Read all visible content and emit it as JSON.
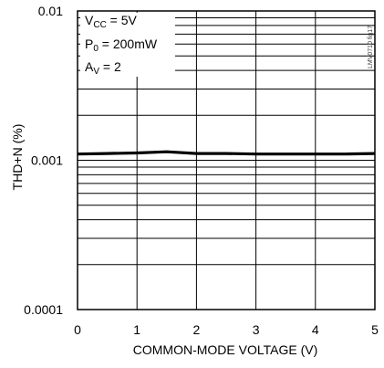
{
  "chart_data": {
    "type": "line",
    "xlabel": "COMMON-MODE VOLTAGE (V)",
    "ylabel": "THD+N (%)",
    "xlim": [
      0,
      5
    ],
    "ylim": [
      0.0001,
      0.01
    ],
    "yscale": "log",
    "grid": true,
    "x_ticks": [
      "0",
      "1",
      "2",
      "3",
      "4",
      "5"
    ],
    "y_ticks": [
      "0.0001",
      "0.001",
      "0.01"
    ],
    "legend_lines": [
      {
        "main": "V",
        "sub": "CC",
        "rest": " = 5V"
      },
      {
        "main": "P",
        "sub": "0",
        "rest": " = 200mW"
      },
      {
        "main": "A",
        "sub": "V",
        "rest": " = 2"
      }
    ],
    "watermark": "LMV0710 fig17",
    "series": [
      {
        "x": [
          0,
          0.5,
          1.0,
          1.5,
          2.0,
          2.5,
          3.0,
          3.5,
          4.0,
          4.5,
          5.0
        ],
        "values": [
          0.0011,
          0.00111,
          0.00112,
          0.00114,
          0.00111,
          0.00111,
          0.0011,
          0.0011,
          0.0011,
          0.0011,
          0.00111
        ]
      }
    ]
  }
}
